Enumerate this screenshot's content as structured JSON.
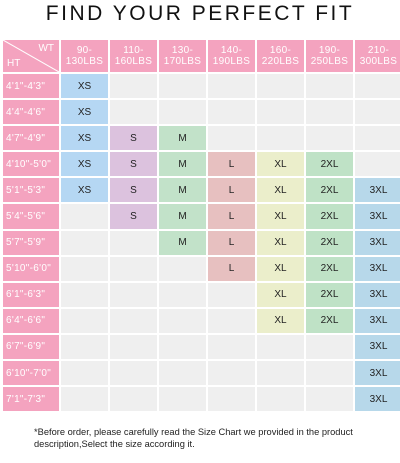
{
  "title": "FIND YOUR PERFECT FIT",
  "corner": {
    "wt": "WT",
    "ht": "HT"
  },
  "weights": [
    "90-\n130LBS",
    "110-\n160LBS",
    "130-\n170LBS",
    "140-\n190LBS",
    "160-\n220LBS",
    "190-\n250LBS",
    "210-\n300LBS"
  ],
  "heights": [
    "4'1\"-4'3\"",
    "4'4\"-4'6\"",
    "4'7\"-4'9\"",
    "4'10\"-5'0\"",
    "5'1\"-5'3\"",
    "5'4\"-5'6\"",
    "5'7\"-5'9\"",
    "5'10\"-6'0\"",
    "6'1\"-6'3\"",
    "6'4\"-6'6\"",
    "6'7\"-6'9\"",
    "6'10\"-7'0\"",
    "7'1\"-7'3\""
  ],
  "sizes": [
    {
      "label": "XS",
      "color": "#b5d7f3"
    },
    {
      "label": "S",
      "color": "#dcc2de"
    },
    {
      "label": "M",
      "color": "#c2e2c9"
    },
    {
      "label": "L",
      "color": "#e7c0c0"
    },
    {
      "label": "XL",
      "color": "#ebeecb"
    },
    {
      "label": "2XL",
      "color": "#bfe2c6"
    },
    {
      "label": "3XL",
      "color": "#b7d8ea"
    }
  ],
  "chart": [
    [
      1,
      0,
      0,
      0,
      0,
      0,
      0
    ],
    [
      1,
      0,
      0,
      0,
      0,
      0,
      0
    ],
    [
      1,
      1,
      1,
      0,
      0,
      0,
      0
    ],
    [
      1,
      1,
      1,
      1,
      1,
      1,
      0
    ],
    [
      1,
      1,
      1,
      1,
      1,
      1,
      1
    ],
    [
      0,
      1,
      1,
      1,
      1,
      1,
      1
    ],
    [
      0,
      0,
      1,
      1,
      1,
      1,
      1
    ],
    [
      0,
      0,
      0,
      1,
      1,
      1,
      1
    ],
    [
      0,
      0,
      0,
      0,
      1,
      1,
      1
    ],
    [
      0,
      0,
      0,
      0,
      1,
      1,
      1
    ],
    [
      0,
      0,
      0,
      0,
      0,
      0,
      1
    ],
    [
      0,
      0,
      0,
      0,
      0,
      0,
      1
    ],
    [
      0,
      0,
      0,
      0,
      0,
      0,
      1
    ]
  ],
  "footer": "*Before order, please carefully read the Size Chart we provided in the product description,Select the size according it.",
  "colors": {
    "header_pink": "#f4a3bf",
    "empty": "#efefef"
  }
}
